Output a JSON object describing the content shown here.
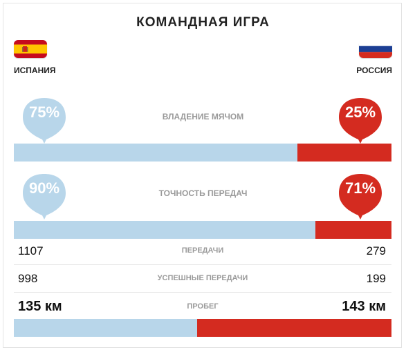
{
  "title": "КОМАНДНАЯ ИГРА",
  "teams": {
    "left": {
      "name": "ИСПАНИЯ",
      "flag": "spain-flag"
    },
    "right": {
      "name": "РОССИЯ",
      "flag": "russia-flag"
    }
  },
  "colors": {
    "left": "#b8d6ea",
    "right": "#d42b20"
  },
  "possession": {
    "label": "ВЛАДЕНИЕ МЯЧОМ",
    "left_pct": "75%",
    "right_pct": "25%",
    "left_value": 75,
    "right_value": 25
  },
  "passing_accuracy": {
    "label": "ТОЧНОСТЬ ПЕРЕДАЧ",
    "left_pct": "90%",
    "right_pct": "71%",
    "left_value": 1107,
    "right_value": 279
  },
  "passes": {
    "label": "ПЕРЕДАЧИ",
    "left": "1107",
    "right": "279"
  },
  "successful_passes": {
    "label": "УСПЕШНЫЕ ПЕРЕДАЧИ",
    "left": "998",
    "right": "199"
  },
  "distance": {
    "label": "ПРОБЕГ",
    "left": "135 км",
    "right": "143 км",
    "left_value": 135,
    "right_value": 143
  }
}
